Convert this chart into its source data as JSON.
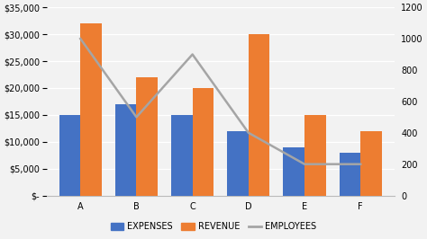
{
  "categories": [
    "A",
    "B",
    "C",
    "D",
    "E",
    "F"
  ],
  "expenses": [
    15000,
    17000,
    15000,
    12000,
    9000,
    8000
  ],
  "revenue": [
    32000,
    22000,
    20000,
    30000,
    15000,
    12000
  ],
  "employees": [
    1000,
    500,
    900,
    400,
    200,
    200
  ],
  "bar_color_expenses": "#4472C4",
  "bar_color_revenue": "#ED7D31",
  "line_color_employees": "#A5A5A5",
  "ylim_left": [
    0,
    35000
  ],
  "ylim_right": [
    0,
    1200
  ],
  "yticks_left": [
    0,
    5000,
    10000,
    15000,
    20000,
    25000,
    30000,
    35000
  ],
  "yticks_right": [
    0,
    200,
    400,
    600,
    800,
    1000,
    1200
  ],
  "legend_labels": [
    "EXPENSES",
    "REVENUE",
    "EMPLOYEES"
  ],
  "background_color": "#F2F2F2",
  "plot_bg_color": "#F2F2F2",
  "grid_color": "#FFFFFF",
  "bar_width": 0.38,
  "tick_label_fontsize": 7,
  "legend_fontsize": 7
}
